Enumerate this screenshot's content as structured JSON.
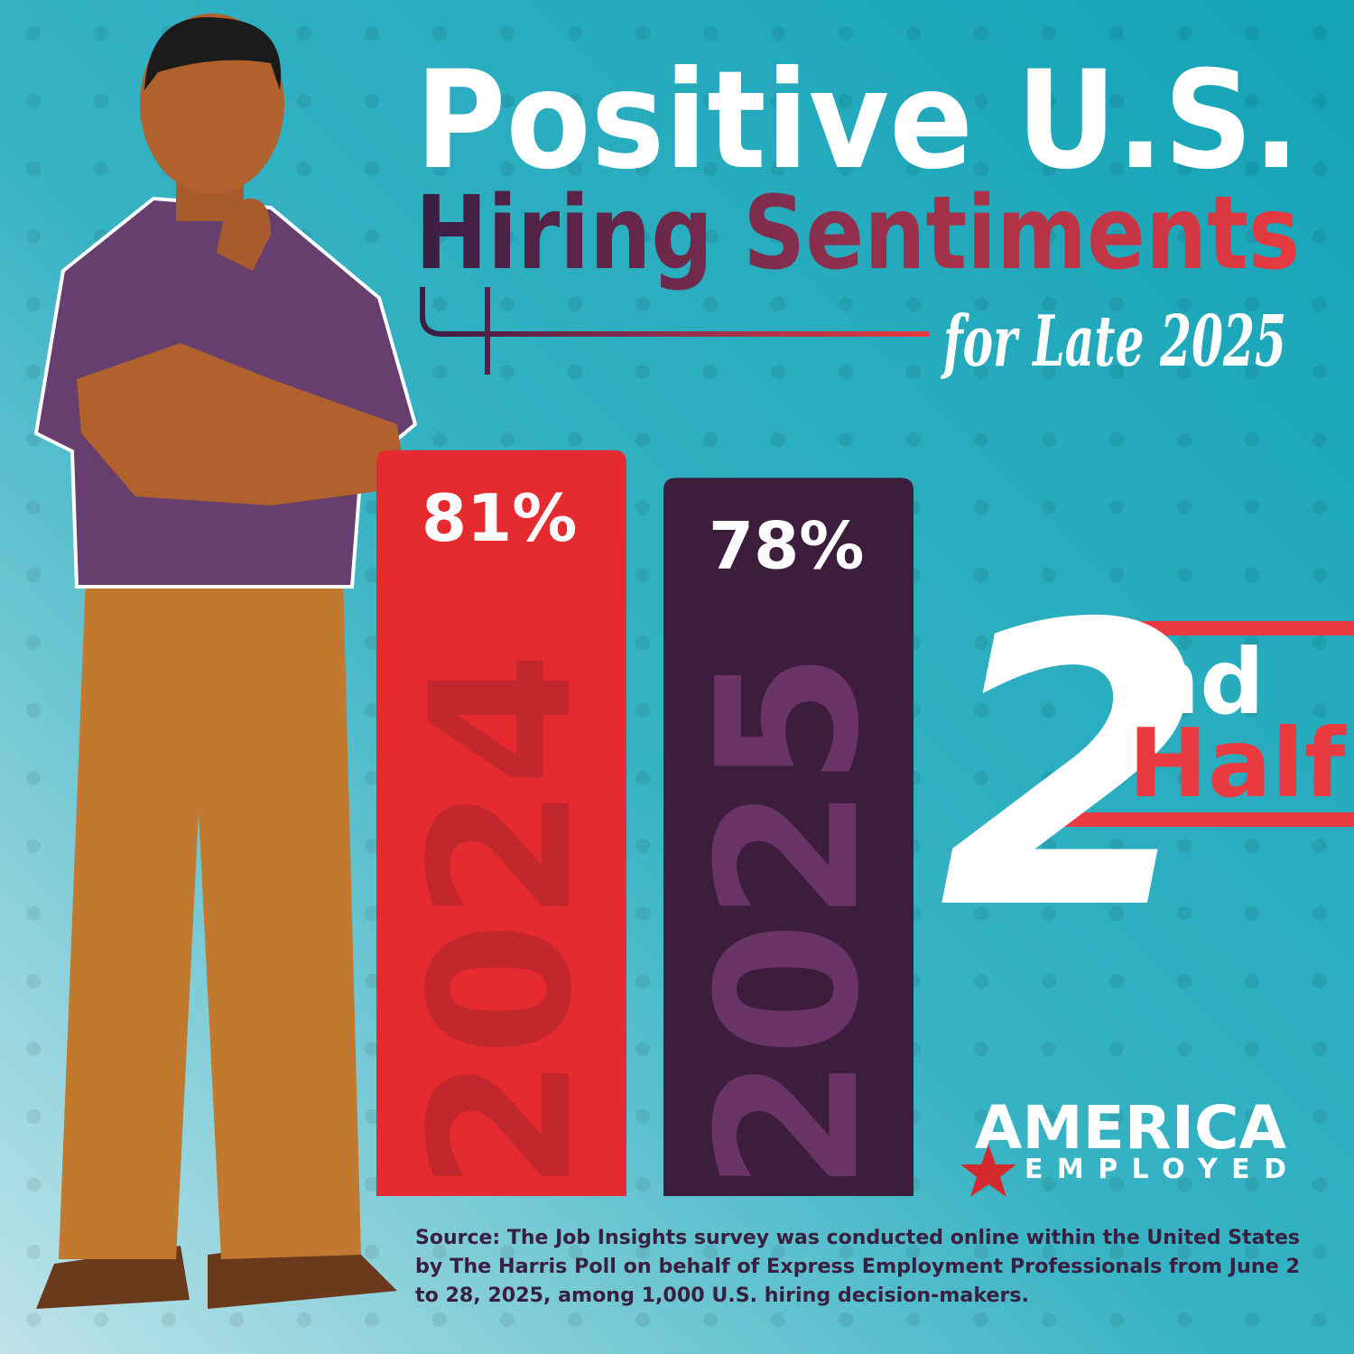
{
  "chart_data": {
    "type": "bar",
    "title": "Positive U.S.",
    "subtitle": "Hiring Sentiments",
    "annotation": "for Late 2025",
    "categories": [
      "2024",
      "2025"
    ],
    "values": [
      81,
      78
    ],
    "value_labels": [
      "81%",
      "78%"
    ],
    "colors": [
      "#e52b2f",
      "#3c1d3c"
    ],
    "badge": {
      "number": "2",
      "suffix": "nd",
      "word": "Half"
    }
  },
  "logo": {
    "top": "AMERICA",
    "bottom": "EMPLOYED"
  },
  "source": [
    "Source: The Job Insights survey was conducted online within the United States",
    "by The Harris Poll on behalf of Express Employment Professionals from June 2",
    "to 28, 2025, among 1,000 U.S. hiring decision-makers."
  ]
}
